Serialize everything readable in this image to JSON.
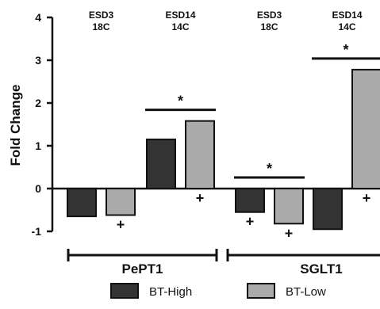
{
  "chart_data": {
    "type": "bar",
    "ylabel": "Fold Change",
    "ylim": [
      -1,
      4
    ],
    "yticks": [
      "-1",
      "0",
      "1",
      "2",
      "3",
      "4"
    ],
    "condition_labels": [
      [
        "ESD3",
        "18C"
      ],
      [
        "ESD14",
        "14C"
      ],
      [
        "ESD3",
        "18C"
      ],
      [
        "ESD14",
        "14C"
      ]
    ],
    "groups": [
      "PePT1",
      "SGLT1"
    ],
    "series": [
      {
        "name": "BT-High",
        "color": "#333333",
        "values": [
          -0.65,
          1.15,
          -0.55,
          -0.95
        ]
      },
      {
        "name": "BT-Low",
        "color": "#aaaaaa",
        "values": [
          -0.62,
          1.58,
          -0.82,
          2.78
        ]
      }
    ],
    "plus_markers": [
      {
        "series": 1,
        "condition": 0,
        "symbol": "+"
      },
      {
        "series": 1,
        "condition": 1,
        "symbol": "+"
      },
      {
        "series": 0,
        "condition": 2,
        "symbol": "+"
      },
      {
        "series": 1,
        "condition": 2,
        "symbol": "+"
      },
      {
        "series": 1,
        "condition": 3,
        "symbol": "+"
      }
    ],
    "significance": [
      {
        "condition": 1,
        "symbol": "*"
      },
      {
        "condition": 2,
        "symbol": "*"
      },
      {
        "condition": 3,
        "symbol": "*"
      }
    ]
  }
}
